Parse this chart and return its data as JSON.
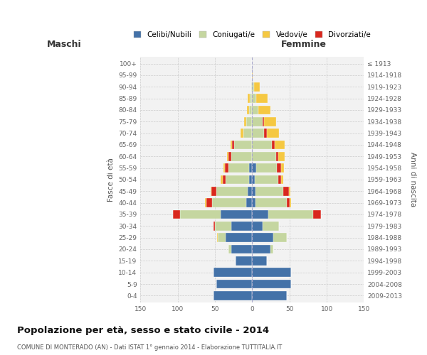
{
  "age_groups": [
    "0-4",
    "5-9",
    "10-14",
    "15-19",
    "20-24",
    "25-29",
    "30-34",
    "35-39",
    "40-44",
    "45-49",
    "50-54",
    "55-59",
    "60-64",
    "65-69",
    "70-74",
    "75-79",
    "80-84",
    "85-89",
    "90-94",
    "95-99",
    "100+"
  ],
  "birth_years": [
    "2009-2013",
    "2004-2008",
    "1999-2003",
    "1994-1998",
    "1989-1993",
    "1984-1988",
    "1979-1983",
    "1974-1978",
    "1969-1973",
    "1964-1968",
    "1959-1963",
    "1954-1958",
    "1949-1953",
    "1944-1948",
    "1939-1943",
    "1934-1938",
    "1929-1933",
    "1924-1928",
    "1919-1923",
    "1914-1918",
    "≤ 1913"
  ],
  "males_celibi": [
    52,
    48,
    52,
    22,
    28,
    36,
    28,
    42,
    8,
    6,
    4,
    4,
    0,
    0,
    0,
    0,
    0,
    0,
    0,
    0,
    0
  ],
  "males_coniugati": [
    0,
    0,
    0,
    0,
    4,
    10,
    22,
    55,
    46,
    42,
    32,
    28,
    28,
    24,
    12,
    8,
    4,
    3,
    1,
    0,
    0
  ],
  "males_vedovi": [
    0,
    0,
    0,
    0,
    0,
    1,
    0,
    0,
    1,
    1,
    2,
    2,
    2,
    2,
    4,
    3,
    3,
    3,
    0,
    0,
    0
  ],
  "males_divorziati": [
    0,
    0,
    0,
    0,
    0,
    0,
    2,
    9,
    8,
    7,
    4,
    5,
    4,
    3,
    0,
    0,
    0,
    0,
    0,
    0,
    0
  ],
  "females_nubili": [
    46,
    52,
    52,
    20,
    24,
    28,
    14,
    22,
    4,
    4,
    3,
    5,
    0,
    0,
    0,
    0,
    0,
    0,
    0,
    0,
    0
  ],
  "females_coniugate": [
    0,
    0,
    0,
    0,
    4,
    18,
    22,
    60,
    42,
    38,
    32,
    28,
    32,
    26,
    16,
    14,
    8,
    5,
    2,
    0,
    0
  ],
  "females_vedove": [
    0,
    0,
    0,
    0,
    0,
    0,
    0,
    0,
    2,
    2,
    3,
    4,
    9,
    14,
    16,
    16,
    16,
    16,
    8,
    1,
    0
  ],
  "females_divorziate": [
    0,
    0,
    0,
    0,
    0,
    0,
    0,
    10,
    4,
    7,
    4,
    6,
    3,
    4,
    4,
    2,
    0,
    0,
    0,
    0,
    0
  ],
  "colors": {
    "celibi": "#4472a8",
    "coniugati": "#c5d6a0",
    "vedovi": "#f5c842",
    "divorziati": "#d9281e"
  },
  "xlim": 150,
  "title": "Popolazione per età, sesso e stato civile - 2014",
  "subtitle": "COMUNE DI MONTERADO (AN) - Dati ISTAT 1° gennaio 2014 - Elaborazione TUTTITALIA.IT",
  "ylabel": "Fasce di età",
  "ylabel_right": "Anni di nascita",
  "header_maschi": "Maschi",
  "header_femmine": "Femmine",
  "legend_labels": [
    "Celibi/Nubili",
    "Coniugati/e",
    "Vedovi/e",
    "Divorziati/e"
  ],
  "xticks": [
    -150,
    -100,
    -50,
    0,
    50,
    100,
    150
  ],
  "xtick_labels": [
    "150",
    "100",
    "50",
    "0",
    "50",
    "100",
    "150"
  ]
}
